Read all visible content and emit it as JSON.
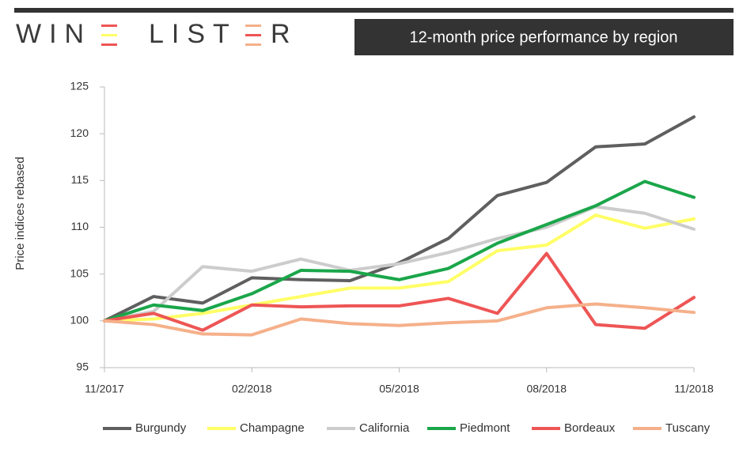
{
  "brand_parts": [
    "WIN",
    "LIST",
    "R"
  ],
  "chart_data": {
    "type": "line",
    "title": "12-month price performance by region",
    "y_label": "Price indices rebased",
    "categories": [
      "11/2017",
      null,
      null,
      "02/2018",
      null,
      null,
      "05/2018",
      null,
      null,
      "08/2018",
      null,
      null,
      "11/2018"
    ],
    "ylim": [
      95,
      125
    ],
    "yticks": [
      95,
      100,
      105,
      110,
      115,
      120,
      125
    ],
    "grid": false,
    "legend": "bottom",
    "series": [
      {
        "name": "Burgundy",
        "color": "#5f5f5f",
        "values": [
          100,
          102.6,
          101.9,
          104.6,
          104.4,
          104.3,
          106.2,
          108.8,
          113.4,
          114.8,
          118.6,
          118.9,
          121.8
        ]
      },
      {
        "name": "Champagne",
        "color": "#ffff66",
        "values": [
          100,
          100.2,
          100.8,
          101.7,
          102.6,
          103.5,
          103.5,
          104.2,
          107.5,
          108.1,
          111.3,
          109.9,
          110.9
        ]
      },
      {
        "name": "California",
        "color": "#cccccc",
        "values": [
          100,
          101.0,
          105.8,
          105.3,
          106.6,
          105.4,
          106.1,
          107.3,
          108.8,
          110.0,
          112.2,
          111.5,
          109.8
        ]
      },
      {
        "name": "Piedmont",
        "color": "#1aa64a",
        "values": [
          100,
          101.7,
          101.1,
          102.9,
          105.4,
          105.3,
          104.4,
          105.6,
          108.3,
          110.3,
          112.3,
          114.9,
          113.2
        ]
      },
      {
        "name": "Bordeaux",
        "color": "#ee5555",
        "values": [
          100,
          100.8,
          99.0,
          101.7,
          101.5,
          101.6,
          101.6,
          102.4,
          100.8,
          107.2,
          99.6,
          99.2,
          102.5
        ]
      },
      {
        "name": "Tuscany",
        "color": "#f5b08a",
        "values": [
          100,
          99.6,
          98.6,
          98.5,
          100.2,
          99.7,
          99.5,
          99.8,
          100.0,
          101.4,
          101.8,
          101.4,
          100.9
        ]
      }
    ]
  }
}
